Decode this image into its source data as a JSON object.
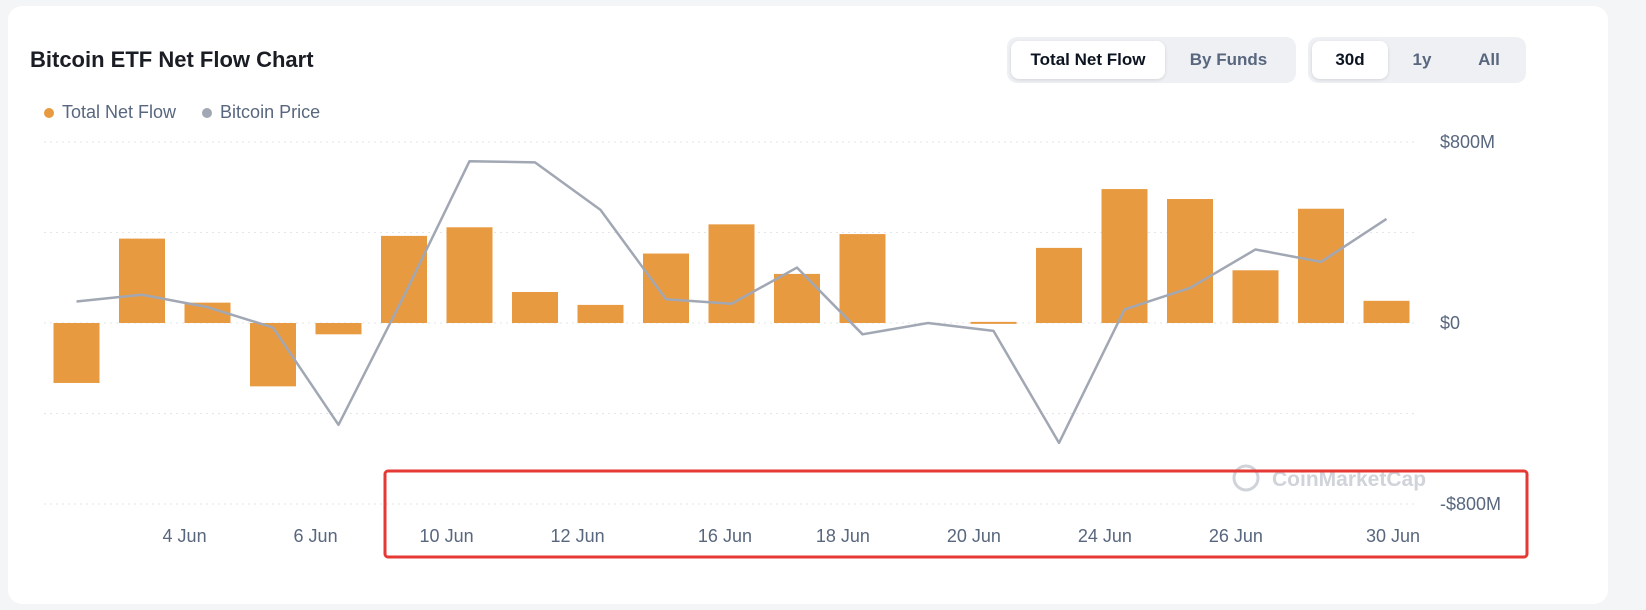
{
  "header": {
    "title": "Bitcoin ETF Net Flow Chart"
  },
  "legend": {
    "items": [
      {
        "label": "Total Net Flow",
        "color": "#e89a40"
      },
      {
        "label": "Bitcoin Price",
        "color": "#a1a7b3"
      }
    ]
  },
  "view_toggle": {
    "total_net_flow": "Total Net Flow",
    "by_funds": "By Funds",
    "active": "Total Net Flow"
  },
  "range_toggle": {
    "d30": "30d",
    "y1": "1y",
    "all": "All",
    "active": "30d"
  },
  "watermark": "CoinMarketCap",
  "chart_data": {
    "type": "bar",
    "title": "Bitcoin ETF Net Flow Chart",
    "xlabel": "",
    "ylabel": "",
    "ylim": [
      -800,
      800
    ],
    "y_unit": "$M",
    "y_tick_values": [
      -800,
      0,
      800
    ],
    "y_tick_labels": [
      "-$800M",
      "$0",
      "$800M"
    ],
    "x_tick_labels": [
      "4 Jun",
      "6 Jun",
      "10 Jun",
      "12 Jun",
      "16 Jun",
      "18 Jun",
      "20 Jun",
      "24 Jun",
      "26 Jun",
      "30 Jun"
    ],
    "x_tick_bar_positions": [
      1.65,
      3.65,
      5.65,
      7.65,
      9.9,
      11.7,
      13.7,
      15.7,
      17.7,
      20.1
    ],
    "grid": true,
    "grid_values": [
      -800,
      -400,
      0,
      400,
      800
    ],
    "legend_position": "top-left",
    "series": [
      {
        "name": "Total Net Flow",
        "type": "bar",
        "color": "#e89a40",
        "values": [
          -265,
          373,
          90,
          -280,
          -50,
          385,
          423,
          137,
          80,
          307,
          436,
          217,
          393,
          0,
          5,
          332,
          592,
          548,
          233,
          505,
          98
        ]
      },
      {
        "name": "Bitcoin Price",
        "type": "line",
        "color": "#a1a7b3",
        "values": [
          95,
          125,
          70,
          -20,
          -450,
          120,
          715,
          710,
          500,
          105,
          85,
          245,
          -50,
          0,
          -35,
          -530,
          60,
          155,
          325,
          270,
          460
        ]
      }
    ]
  }
}
